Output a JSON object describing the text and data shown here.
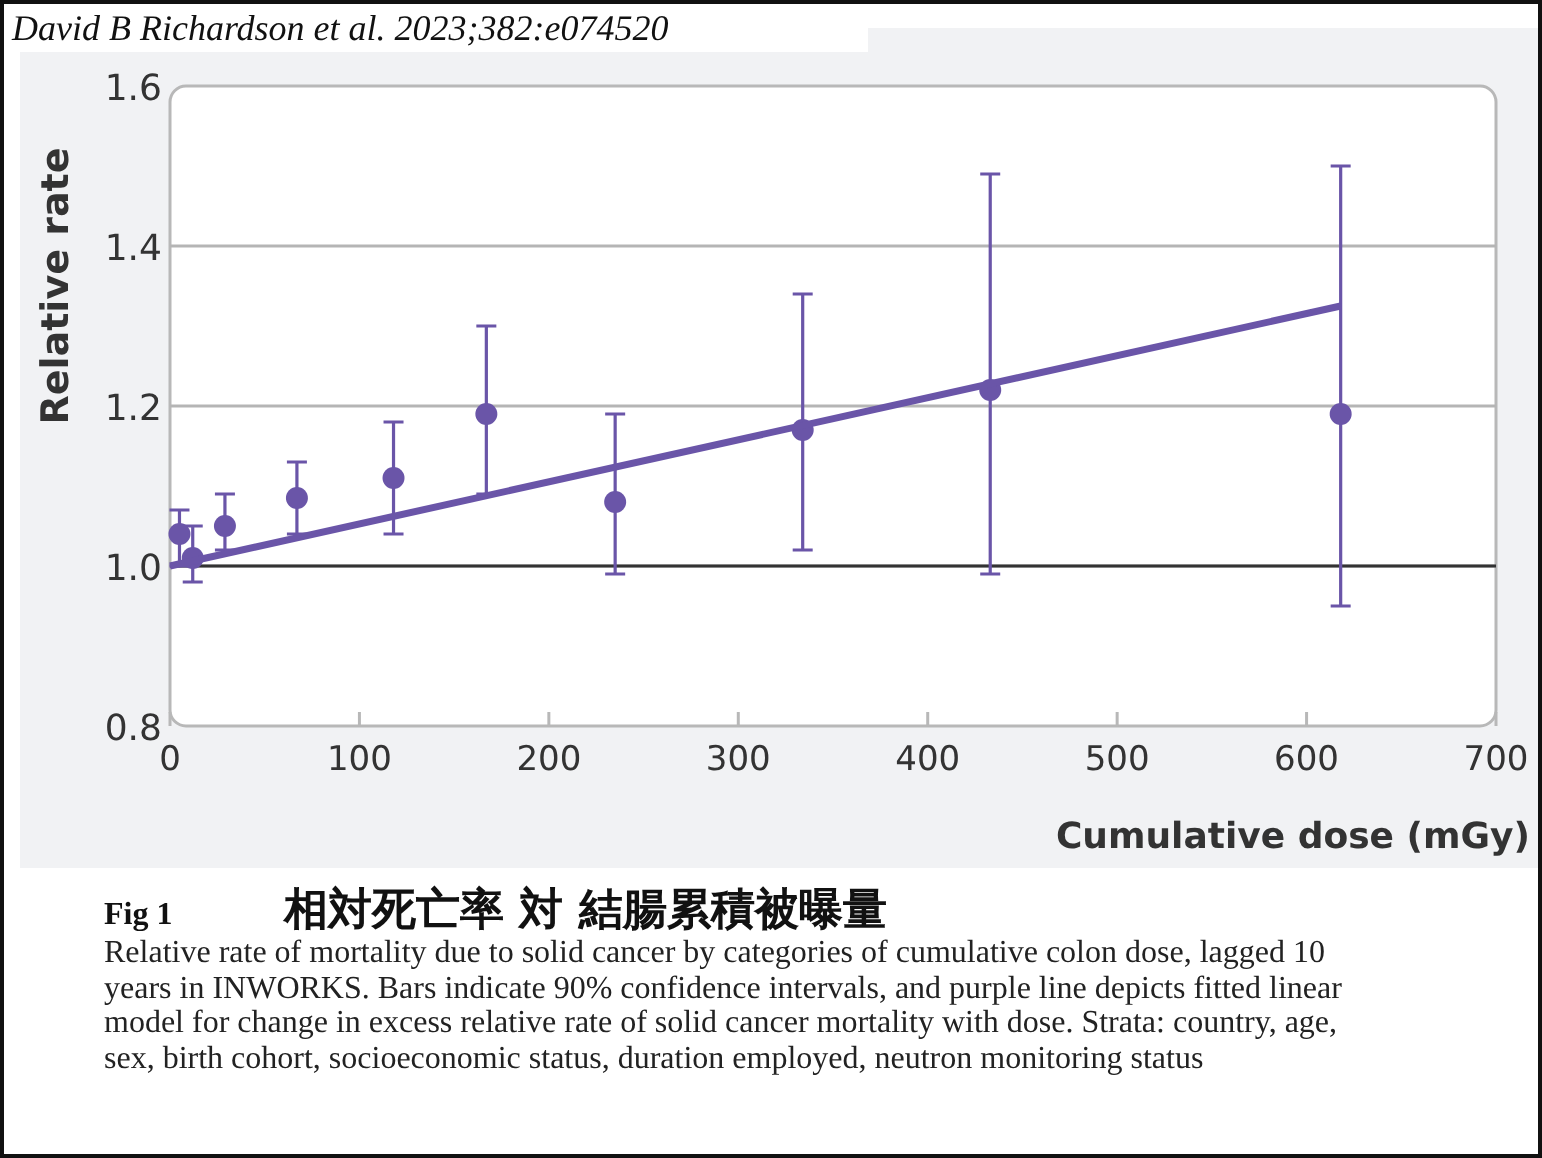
{
  "chart_data": {
    "type": "scatter",
    "title": "相対死亡率 対 結腸累積被曝量",
    "xlabel": "Cumulative dose (mGy)",
    "ylabel": "Relative rate",
    "annotations": [
      "David B Richardson et al. 2023;382:e074520",
      "Fig 1",
      "Relative rate of mortality due to solid cancer by categories of cumulative colon dose, lagged 10 years in INWORKS. Bars indicate 90% confidence intervals, and purple line depicts fitted linear model for change in excess relative rate of solid cancer mortality with dose. Strata: country, age, sex, birth cohort, socioeconomic status, duration employed, neutron monitoring status"
    ],
    "xlim": [
      0,
      700
    ],
    "xticks": [
      0,
      100,
      200,
      300,
      400,
      500,
      600,
      700
    ],
    "ylim": [
      0.8,
      1.6
    ],
    "yticks": [
      {
        "value": 0.8,
        "label": "0.8"
      },
      {
        "value": 1.0,
        "label": "1.0"
      },
      {
        "value": 1.2,
        "label": "1.2"
      },
      {
        "value": 1.4,
        "label": "1.4"
      },
      {
        "value": 1.6,
        "label": "1.6"
      }
    ],
    "grid": "y",
    "ref_lines": [
      {
        "axis": "y",
        "value": 1.0,
        "color": "#333333"
      }
    ],
    "series": [
      {
        "type": "scatter",
        "marker": "circle",
        "color": "#6a55a8",
        "x": [
          5,
          12,
          29,
          67,
          118,
          167,
          235,
          334,
          433,
          618
        ],
        "values": [
          1.04,
          1.01,
          1.05,
          1.085,
          1.11,
          1.19,
          1.08,
          1.17,
          1.22,
          1.19
        ],
        "errors": [
          [
            1.0,
            1.07
          ],
          [
            0.98,
            1.05
          ],
          [
            1.02,
            1.09
          ],
          [
            1.04,
            1.13
          ],
          [
            1.04,
            1.18
          ],
          [
            1.09,
            1.3
          ],
          [
            0.99,
            1.19
          ],
          [
            1.02,
            1.34
          ],
          [
            0.99,
            1.49
          ],
          [
            0.95,
            1.5
          ]
        ]
      },
      {
        "type": "line",
        "color": "#6a55a8",
        "x": [
          0,
          618
        ],
        "values": [
          1.0,
          1.325
        ]
      }
    ]
  }
}
